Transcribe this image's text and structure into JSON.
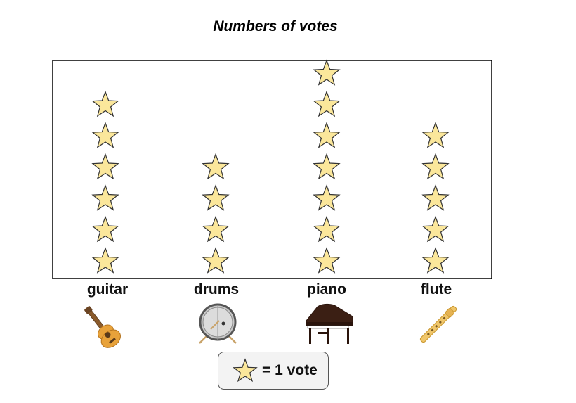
{
  "chart_data": {
    "type": "pictograph",
    "title": "Numbers of votes",
    "categories": [
      "guitar",
      "drums",
      "piano",
      "flute"
    ],
    "values": [
      6,
      4,
      7,
      5
    ],
    "unit": "vote",
    "legend": "= 1 vote",
    "star_color": "#fbe79b",
    "star_stroke": "#333333"
  }
}
